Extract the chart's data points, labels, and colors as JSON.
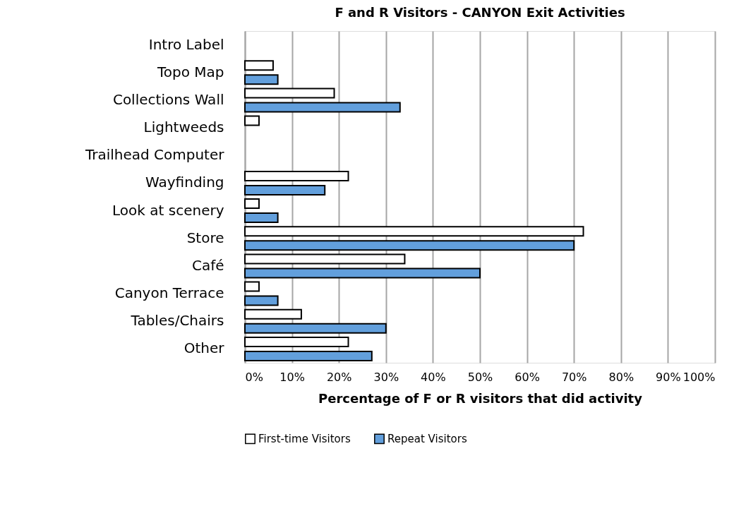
{
  "chart_data": {
    "type": "bar",
    "orientation": "horizontal",
    "title": "F and R Visitors - CANYON Exit Activities",
    "xlabel": "Percentage of F or R visitors that did activity",
    "categories": [
      "Intro Label",
      "Topo Map",
      "Collections Wall",
      "Lightweeds",
      "Trailhead Computer",
      "Wayfinding",
      "Look at scenery",
      "Store",
      "Café",
      "Canyon Terrace",
      "Tables/Chairs",
      "Other"
    ],
    "series": [
      {
        "name": "First-time Visitors",
        "color": "#ffffff",
        "values": [
          null,
          6,
          19,
          3,
          null,
          22,
          3,
          72,
          34,
          3,
          12,
          22
        ]
      },
      {
        "name": "Repeat Visitors",
        "color": "#629fdc",
        "values": [
          null,
          7,
          33,
          null,
          null,
          17,
          7,
          70,
          50,
          7,
          30,
          27
        ]
      }
    ],
    "xlim": [
      0,
      100
    ],
    "xticks": [
      {
        "value": 0,
        "label": "0%"
      },
      {
        "value": 10,
        "label": "10%"
      },
      {
        "value": 20,
        "label": "20%"
      },
      {
        "value": 30,
        "label": "30%"
      },
      {
        "value": 40,
        "label": "40%"
      },
      {
        "value": 50,
        "label": "50%"
      },
      {
        "value": 60,
        "label": "60%"
      },
      {
        "value": 70,
        "label": "70%"
      },
      {
        "value": 80,
        "label": "80%"
      },
      {
        "value": 90,
        "label": "90%"
      },
      {
        "value": 100,
        "label": "100%"
      }
    ],
    "grid": "x",
    "legend": "bottom"
  }
}
